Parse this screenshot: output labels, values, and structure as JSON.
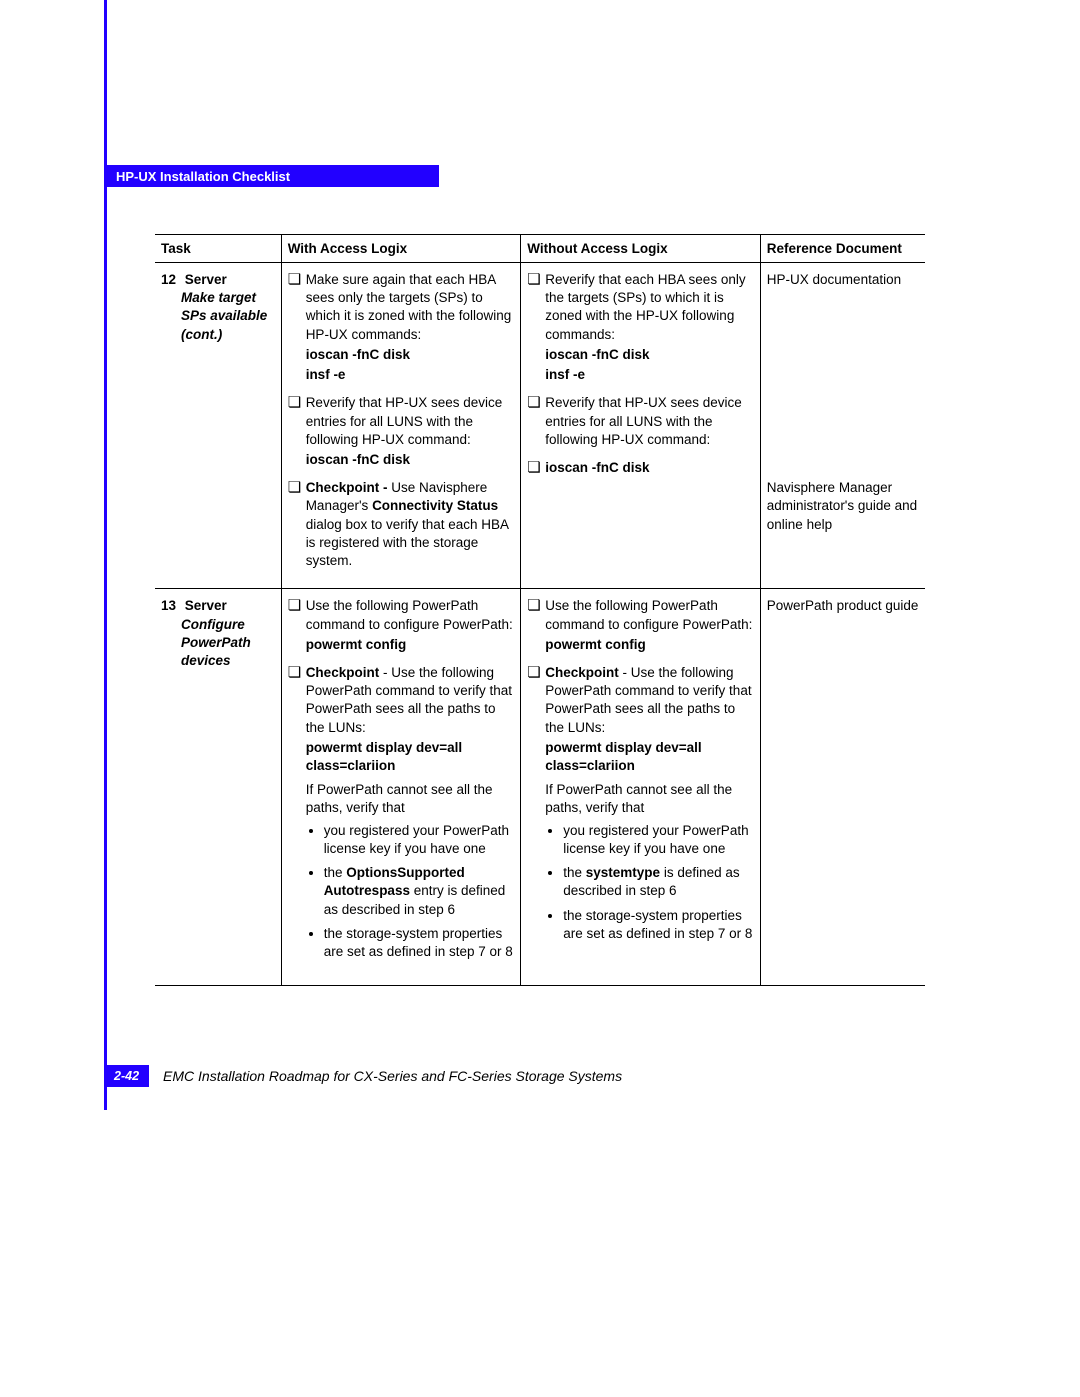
{
  "header": {
    "title": "HP-UX Installation Checklist"
  },
  "columns": {
    "task": "Task",
    "with": "With Access Logix",
    "without": "Without Access Logix",
    "ref": "Reference Document"
  },
  "rows": [
    {
      "num": "12",
      "task_head": "Server",
      "task_sub": "Make target SPs available (cont.)",
      "with": {
        "a_text": "Make sure again that each HBA sees only the targets (SPs) to which it is zoned with the following HP-UX commands:",
        "a_cmd1": "ioscan -fnC disk",
        "a_cmd2": "insf -e",
        "b_text": "Reverify that HP-UX sees device entries for all LUNS with the following HP-UX command:",
        "b_cmd": "ioscan -fnC disk",
        "c_html": "<b>Checkpoint -</b> Use Navisphere Manager's <b>Connectivity Status</b> dialog box to verify that each HBA is registered with the storage system."
      },
      "without": {
        "a_text": "Reverify that each HBA sees only the targets (SPs) to which it is zoned with the HP-UX following commands:",
        "a_cmd1": "ioscan -fnC disk",
        "a_cmd2": "insf -e",
        "b_text": "Reverify that HP-UX sees device entries for all LUNS with the following HP-UX command:",
        "b_cmd": "ioscan -fnC disk"
      },
      "ref1": "HP-UX documentation",
      "ref2": "Navisphere Manager administrator's guide and online help"
    },
    {
      "num": "13",
      "task_head": "Server",
      "task_sub": "Configure PowerPath devices",
      "with": {
        "a_text": "Use the following PowerPath command to configure PowerPath:",
        "a_cmd": "powermt config",
        "b_html": "<b>Checkpoint</b> - Use the following PowerPath command to verify that PowerPath sees all the paths to the LUNs:",
        "b_cmd": "powermt display dev=all class=clariion",
        "c_text": "If PowerPath cannot see all the paths, verify that",
        "c_li1": "you registered your PowerPath license key if you have one",
        "c_li2_html": "the <b>OptionsSupported Autotrespass</b> entry is defined as described in step 6",
        "c_li3": "the storage-system properties are set as defined in step 7 or 8"
      },
      "without": {
        "a_text": "Use the following PowerPath command to configure PowerPath:",
        "a_cmd": "powermt config",
        "b_html": "<b>Checkpoint</b> - Use the following PowerPath command to verify that PowerPath sees all the paths to the LUNs:",
        "b_cmd": "powermt display dev=all class=clariion",
        "c_text": "If PowerPath cannot see all the paths, verify that",
        "c_li1": "you registered your PowerPath license key if you have one",
        "c_li2_html": "the <b>systemtype</b> is defined as described in step 6",
        "c_li3": "the storage-system properties are set as defined in step 7 or 8"
      },
      "ref": "PowerPath product guide"
    }
  ],
  "footer": {
    "page": "2-42",
    "text": "EMC Installation Roadmap for CX-Series and FC-Series Storage Systems"
  },
  "colors": {
    "accent": "#2200ff",
    "text": "#000000",
    "bg": "#ffffff"
  }
}
